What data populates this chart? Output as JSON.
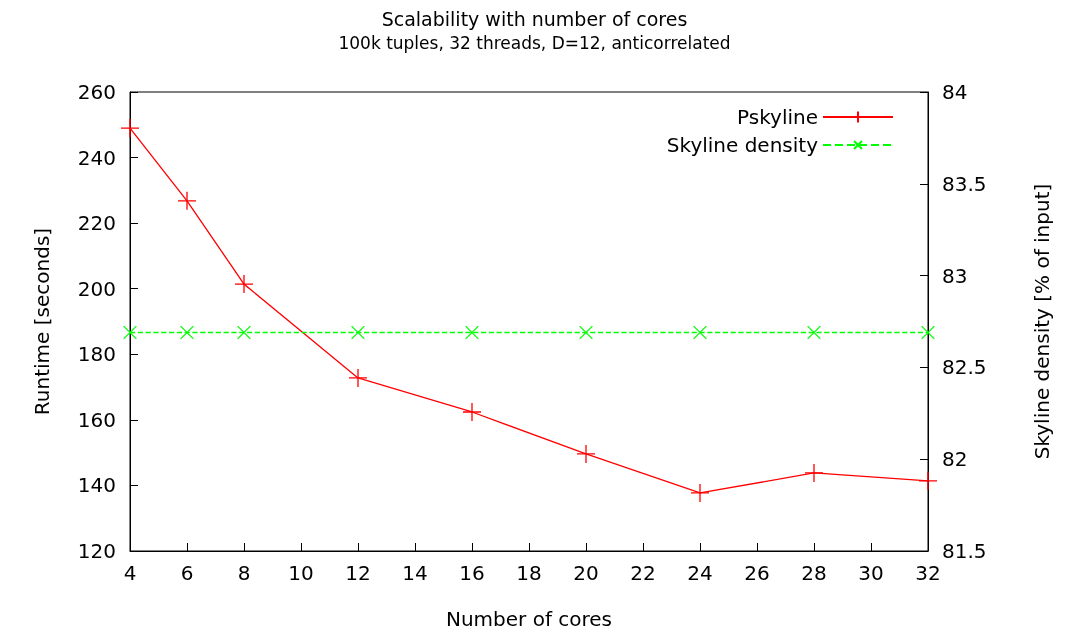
{
  "chart_data": {
    "type": "line",
    "title": "Scalability with number of cores",
    "subtitle": "100k tuples, 32 threads, D=12, anticorrelated",
    "xlabel": "Number of cores",
    "ylabel": "Runtime [seconds]",
    "y2label": "Skyline density [% of input]",
    "x": [
      4,
      6,
      8,
      12,
      16,
      20,
      24,
      28,
      32
    ],
    "series": [
      {
        "name": "Pskyline",
        "color": "#ff0000",
        "values": [
          249,
          226.8,
          201.4,
          172.8,
          162.4,
          149.6,
          137.7,
          143.8,
          141.4
        ],
        "marker": "cross",
        "line_style": "solid"
      },
      {
        "name": "Skyline density",
        "color": "#00ff00",
        "values": [
          82.69,
          82.69,
          82.69,
          82.69,
          82.69,
          82.69,
          82.69,
          82.69,
          82.69
        ],
        "axis": "y2",
        "marker": "cross",
        "line_style": "dashed"
      }
    ],
    "xlim": [
      4,
      32
    ],
    "xticks": [
      4,
      6,
      8,
      10,
      12,
      14,
      16,
      18,
      20,
      22,
      24,
      26,
      28,
      30,
      32
    ],
    "ylim": [
      120,
      260
    ],
    "yticks": [
      120,
      140,
      160,
      180,
      200,
      220,
      240,
      260
    ],
    "y2lim": [
      81.5,
      84
    ],
    "y2ticks": [
      81.5,
      82,
      82.5,
      83,
      83.5,
      84
    ],
    "grid": false,
    "legend": "top right"
  }
}
